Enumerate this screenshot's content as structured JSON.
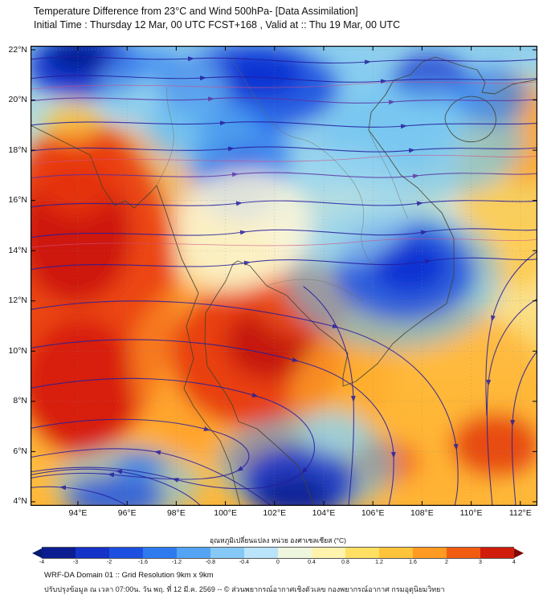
{
  "header": {
    "title_line1": "Temperature Difference from 23°C and Wind 500hPa- [Data Assimilation]",
    "title_line2": "Initial Time : Thursday 12 Mar, 00 UTC FCST+168 , Valid at ::  Thu 19 Mar, 00 UTC"
  },
  "map": {
    "y_ticks": [
      "22°N",
      "20°N",
      "18°N",
      "16°N",
      "14°N",
      "12°N",
      "10°N",
      "8°N",
      "6°N",
      "4°N"
    ],
    "x_ticks": [
      "94°E",
      "96°E",
      "98°E",
      "100°E",
      "102°E",
      "104°E",
      "106°E",
      "108°E",
      "110°E",
      "112°E"
    ]
  },
  "colorbar": {
    "label": "อุณหภูมิเปลี่ยนแปลง หน่วย องศาเซลเซียส (°C)",
    "tick_labels": [
      "-4",
      "-3",
      "-2",
      "-1.6",
      "-1.2",
      "-0.8",
      "-0.4",
      "0",
      "0.4",
      "0.8",
      "1.2",
      "1.6",
      "2",
      "3",
      "4"
    ],
    "colors": [
      "#071a70",
      "#0b1d91",
      "#1433c8",
      "#1d50e0",
      "#2e7bf0",
      "#55a4f4",
      "#86c9f6",
      "#b9e4fa",
      "#eef7dd",
      "#fff3ae",
      "#ffe063",
      "#ffc43a",
      "#ff9a22",
      "#f25c12",
      "#d01c0b",
      "#7d0606"
    ]
  },
  "footer": {
    "line1": "WRF-DA Domain 01 :: Grid Resolution 9km x 9km",
    "line2": "ปรับปรุงข้อมูล ณ เวลา 07:00น. วัน พฤ. ที่ 12 มี.ค. 2569 -- © ส่วนพยากรณ์อากาศเชิงตัวเลข กองพยากรณ์อากาศ กรมอุตุนิยมวิทยา"
  },
  "chart_data": {
    "type": "heatmap",
    "title": "Temperature Difference from 23°C and Wind 500hPa- [Data Assimilation]",
    "subtitle": "Initial Time : Thursday 12 Mar, 00 UTC FCST+168 , Valid at ::  Thu 19 Mar, 00 UTC",
    "xlabel": "",
    "ylabel": "",
    "x_ticks": [
      "94°E",
      "96°E",
      "98°E",
      "100°E",
      "102°E",
      "104°E",
      "106°E",
      "108°E",
      "110°E",
      "112°E"
    ],
    "y_ticks": [
      "22°N",
      "20°N",
      "18°N",
      "16°N",
      "14°N",
      "12°N",
      "10°N",
      "8°N",
      "6°N",
      "4°N"
    ],
    "x_range_deg_east": [
      92.5,
      112.5
    ],
    "y_range_deg_north": [
      3.9,
      22.2
    ],
    "grid": true,
    "colorbar": {
      "label": "อุณหภูมิเปลี่ยนแปลง หน่วย องศาเซลเซียส (°C)",
      "units": "°C",
      "ticks": [
        -4,
        -3,
        -2,
        -1.6,
        -1.2,
        -0.8,
        -0.4,
        0,
        0.4,
        0.8,
        1.2,
        1.6,
        2,
        3,
        4
      ],
      "orientation": "horizontal-bottom"
    },
    "overlays": [
      "500hPa wind streamlines with arrowheads (dark blue/purple)",
      "coastlines and country borders over Thailand / Indochina region"
    ],
    "qualitative_field_features": [
      "cold (blue) anomaly band across far north ~18N-22N, strongest near 94E 21N, 100-102E 20-21N and 108E 21N",
      "cold (dark blue) pocket near 106.5-108.5E, 12-14.5N",
      "cold pockets along bottom edge near 95-97E 4-5N and 102-104E 4-6N",
      "strong warm (red) anomaly along western edge 94-96E from 6N to 18N",
      "strong warm (red) core over gulf/peninsula ~99.5-103.5E, 7.5-12N",
      "warm (orange/yellow) region in southeast 104-112E south of 12N and along eastern edge 110-112E 14-20N",
      "near-neutral (cream) band over central Thailand ~99-103E, 13-17N"
    ]
  }
}
